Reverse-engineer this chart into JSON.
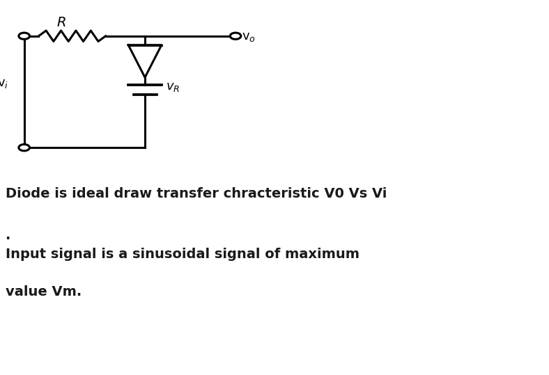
{
  "background_color": "#ffffff",
  "fig_width": 7.88,
  "fig_height": 5.39,
  "dpi": 100,
  "circuit": {
    "R_label": "R",
    "Vi_label": "v$_i$",
    "Vo_label": "v$_o$",
    "VR_label": "$v_R$"
  },
  "text_line1": "Diode is ideal draw transfer chracteristic V0 Vs Vi",
  "text_line2": ".",
  "text_line3": "Input signal is a sinusoidal signal of maximum",
  "text_line4": "value Vm.",
  "text_fontsize": 14,
  "text_color": "#1a1a1a"
}
